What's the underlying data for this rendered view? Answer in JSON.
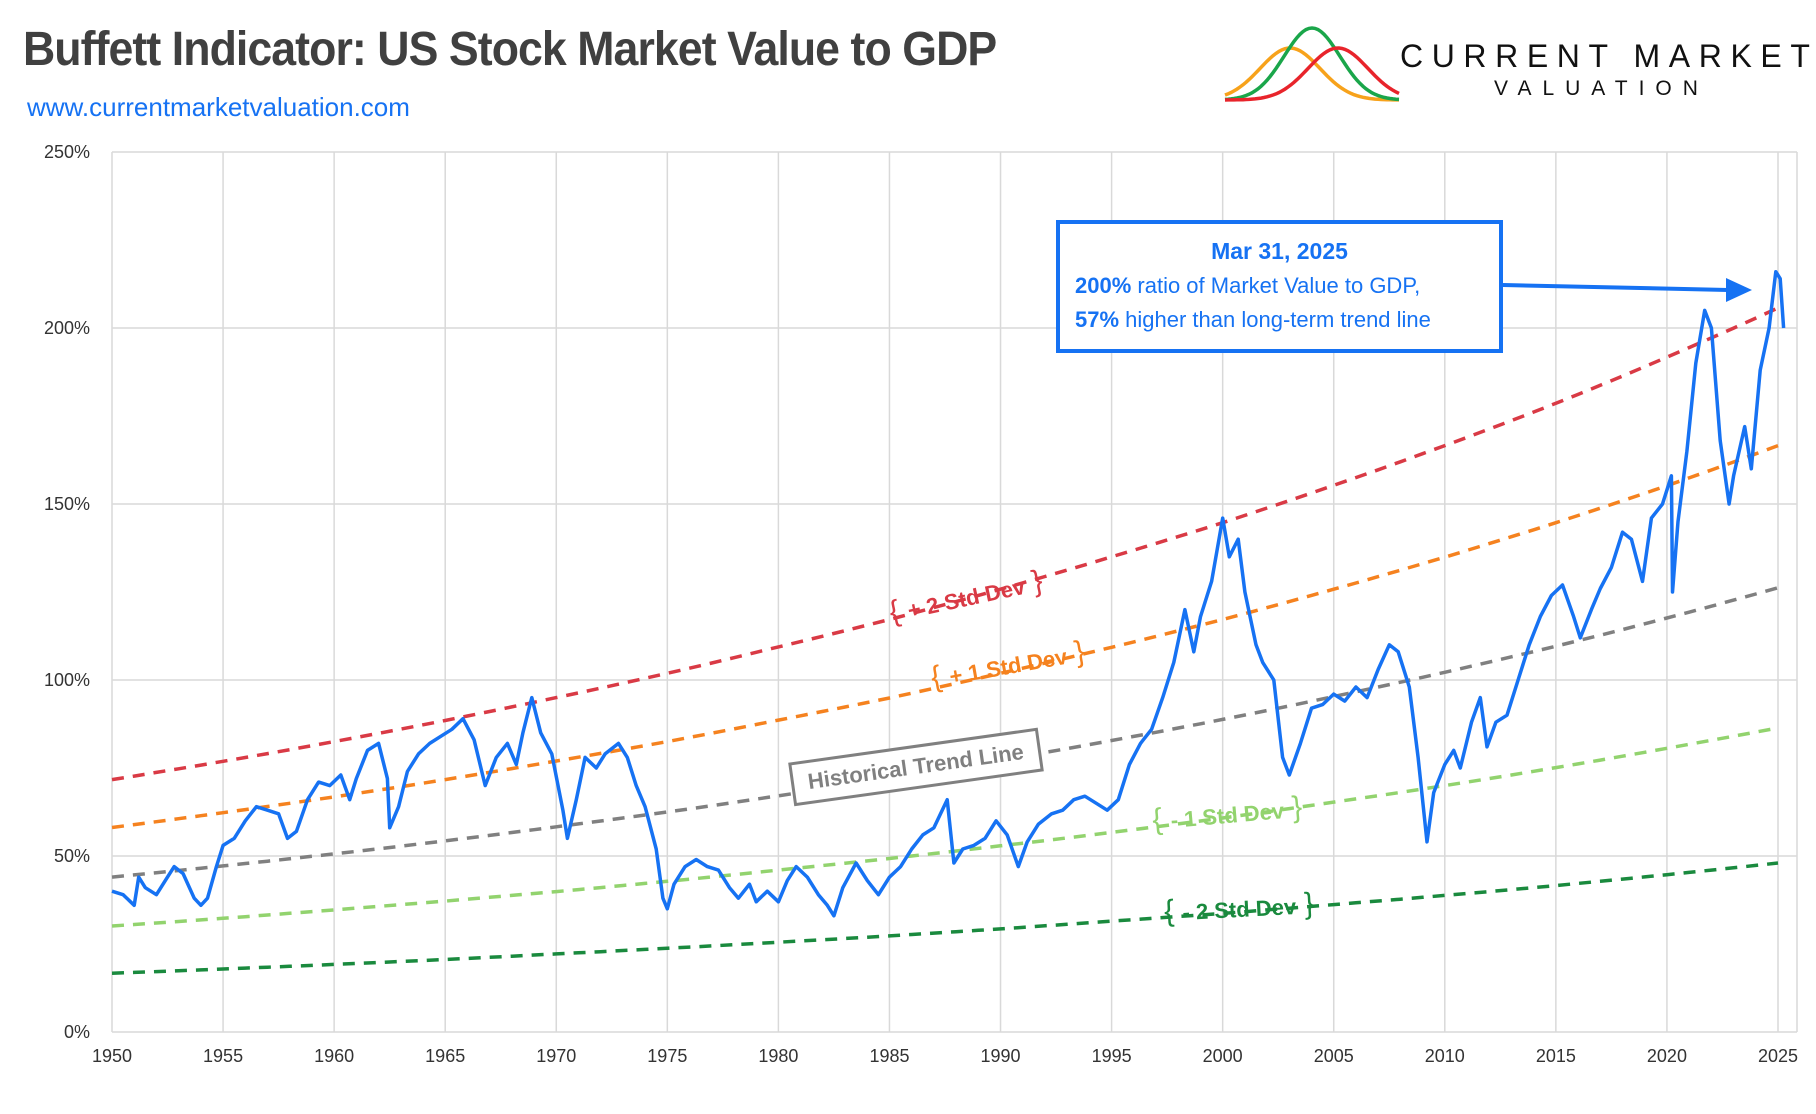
{
  "header": {
    "title": "Buffett Indicator: US Stock Market Value to GDP",
    "url": "www.currentmarketvaluation.com",
    "logo": {
      "line1": "CURRENT MARKET",
      "line2": "VALUATION",
      "curve_colors": [
        "#f7a21b",
        "#1aa64a",
        "#e8242b"
      ]
    }
  },
  "annotation": {
    "date": "Mar 31, 2025",
    "line1_bold": "200%",
    "line1_rest": " ratio of Market Value to GDP,",
    "line2_bold": "57%",
    "line2_rest": " higher than long-term trend line",
    "color": "#1672f3"
  },
  "chart_data": {
    "type": "line",
    "title": "Buffett Indicator: US Stock Market Value to GDP",
    "xlim": [
      1950,
      2025.5
    ],
    "ylim": [
      0,
      250
    ],
    "x_ticks": [
      1950,
      1955,
      1960,
      1965,
      1970,
      1975,
      1980,
      1985,
      1990,
      1995,
      2000,
      2005,
      2010,
      2015,
      2020,
      2025
    ],
    "x_tick_labels": [
      "1950",
      "1955",
      "1960",
      "1965",
      "1970",
      "1975",
      "1980",
      "1985",
      "1990",
      "1995",
      "2000",
      "2005",
      "2010",
      "2015",
      "2020",
      "2025"
    ],
    "y_ticks": [
      0,
      50,
      100,
      150,
      200,
      250
    ],
    "y_tick_labels": [
      "0%",
      "50%",
      "100%",
      "150%",
      "200%",
      "250%"
    ],
    "grid": true,
    "band_x": [
      1950,
      1955,
      1960,
      1965,
      1970,
      1975,
      1980,
      1985,
      1990,
      1995,
      2000,
      2005,
      2010,
      2015,
      2020,
      2025
    ],
    "bands": [
      {
        "name": "+ 2 Std Dev",
        "color": "#d93a45",
        "values": [
          71.7,
          76.9,
          82.5,
          88.5,
          95.0,
          101.9,
          109.4,
          117.2,
          125.8,
          135.0,
          144.7,
          155.3,
          166.6,
          178.6,
          191.7,
          205.7
        ]
      },
      {
        "name": "+ 1 Std Dev",
        "color": "#f5821f",
        "values": [
          58.1,
          62.3,
          66.8,
          71.7,
          77.0,
          82.5,
          88.6,
          94.9,
          101.9,
          109.3,
          117.2,
          125.8,
          134.9,
          144.7,
          155.2,
          166.6
        ]
      },
      {
        "name": "Historical Trend Line",
        "color": "#808080",
        "values": [
          44.0,
          47.2,
          50.6,
          54.3,
          58.3,
          62.5,
          67.1,
          71.9,
          77.2,
          82.8,
          88.8,
          95.3,
          102.2,
          109.6,
          117.6,
          126.2
        ]
      },
      {
        "name": "- 1 Std Dev",
        "color": "#92d36e",
        "values": [
          30.1,
          32.3,
          34.7,
          37.2,
          39.9,
          42.8,
          46.0,
          49.3,
          52.9,
          56.7,
          60.8,
          65.3,
          70.0,
          75.1,
          80.6,
          86.4
        ]
      },
      {
        "name": "- 2 Std Dev",
        "color": "#1a8a3e",
        "values": [
          16.7,
          17.9,
          19.2,
          20.6,
          22.2,
          23.8,
          25.5,
          27.3,
          29.3,
          31.5,
          33.7,
          36.2,
          38.8,
          41.6,
          44.7,
          48.0
        ]
      }
    ],
    "series": [
      {
        "color": "#1672f3",
        "x": [
          1950,
          1950.5,
          1951,
          1951.2,
          1951.5,
          1952,
          1952.5,
          1952.8,
          1953.2,
          1953.7,
          1954,
          1954.3,
          1954.7,
          1955,
          1955.5,
          1956,
          1956.5,
          1957,
          1957.5,
          1957.9,
          1958.3,
          1958.8,
          1959.3,
          1959.8,
          1960.3,
          1960.7,
          1961,
          1961.5,
          1962,
          1962.4,
          1962.5,
          1962.9,
          1963.3,
          1963.8,
          1964.3,
          1964.8,
          1965.3,
          1965.8,
          1966.3,
          1966.8,
          1967.3,
          1967.8,
          1968.2,
          1968.5,
          1968.9,
          1969.3,
          1969.8,
          1970.3,
          1970.5,
          1970.9,
          1971.3,
          1971.8,
          1972.2,
          1972.8,
          1973.2,
          1973.6,
          1974,
          1974.5,
          1974.8,
          1975,
          1975.3,
          1975.8,
          1976.3,
          1976.8,
          1977.3,
          1977.8,
          1978.2,
          1978.7,
          1979,
          1979.5,
          1980,
          1980.4,
          1980.8,
          1981.3,
          1981.8,
          1982.2,
          1982.5,
          1982.9,
          1983.5,
          1984,
          1984.5,
          1985,
          1985.5,
          1986,
          1986.5,
          1987,
          1987.6,
          1987.9,
          1988.3,
          1988.8,
          1989.3,
          1989.8,
          1990.3,
          1990.8,
          1991.2,
          1991.7,
          1992.3,
          1992.8,
          1993.3,
          1993.8,
          1994.3,
          1994.8,
          1995.3,
          1995.8,
          1996.3,
          1996.8,
          1997.3,
          1997.8,
          1998.3,
          1998.7,
          1999,
          1999.5,
          2000,
          2000.3,
          2000.7,
          2001,
          2001.5,
          2001.8,
          2002.3,
          2002.7,
          2003,
          2003.5,
          2004,
          2004.5,
          2005,
          2005.5,
          2006,
          2006.5,
          2007,
          2007.5,
          2007.9,
          2008.4,
          2008.8,
          2009.2,
          2009.5,
          2010,
          2010.4,
          2010.7,
          2011.2,
          2011.6,
          2011.9,
          2012.3,
          2012.8,
          2013.3,
          2013.8,
          2014.3,
          2014.8,
          2015.3,
          2015.8,
          2016.1,
          2016.6,
          2017,
          2017.5,
          2018,
          2018.4,
          2018.9,
          2019.3,
          2019.8,
          2020.2,
          2020.25,
          2020.5,
          2020.9,
          2021.3,
          2021.7,
          2022,
          2022.4,
          2022.8,
          2023,
          2023.5,
          2023.8,
          2024.2,
          2024.6,
          2024.9,
          2025.1,
          2025.25
        ],
        "values": [
          40,
          39,
          36,
          44,
          41,
          39,
          44,
          47,
          45,
          38,
          36,
          38,
          47,
          53,
          55,
          60,
          64,
          63,
          62,
          55,
          57,
          66,
          71,
          70,
          73,
          66,
          72,
          80,
          82,
          72,
          58,
          64,
          74,
          79,
          82,
          84,
          86,
          89,
          83,
          70,
          78,
          82,
          76,
          85,
          95,
          85,
          79,
          63,
          55,
          66,
          78,
          75,
          79,
          82,
          78,
          70,
          64,
          52,
          38,
          35,
          42,
          47,
          49,
          47,
          46,
          41,
          38,
          42,
          37,
          40,
          37,
          43,
          47,
          44,
          39,
          36,
          33,
          41,
          48,
          43,
          39,
          44,
          47,
          52,
          56,
          58,
          66,
          48,
          52,
          53,
          55,
          60,
          56,
          47,
          54,
          59,
          62,
          63,
          66,
          67,
          65,
          63,
          66,
          76,
          82,
          86,
          95,
          105,
          120,
          108,
          118,
          128,
          146,
          135,
          140,
          125,
          110,
          105,
          100,
          78,
          73,
          82,
          92,
          93,
          96,
          94,
          98,
          95,
          103,
          110,
          108,
          98,
          78,
          54,
          68,
          76,
          80,
          75,
          88,
          95,
          81,
          88,
          90,
          100,
          110,
          118,
          124,
          127,
          118,
          112,
          120,
          126,
          132,
          142,
          140,
          128,
          146,
          150,
          158,
          125,
          145,
          165,
          190,
          205,
          200,
          168,
          150,
          158,
          172,
          160,
          188,
          200,
          216,
          214,
          200
        ]
      }
    ]
  }
}
